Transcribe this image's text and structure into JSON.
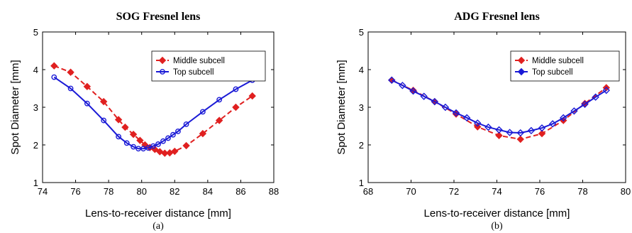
{
  "chart_data": [
    {
      "type": "line",
      "title": "SOG Fresnel lens",
      "xlabel": "Lens-to-receiver distance [mm]",
      "ylabel": "Spot Diameter [mm]",
      "caption": "(a)",
      "xlim": [
        74,
        88
      ],
      "ylim": [
        1,
        5
      ],
      "xticks": [
        74,
        76,
        78,
        80,
        82,
        84,
        86,
        88
      ],
      "yticks": [
        1,
        2,
        3,
        4,
        5
      ],
      "grid": false,
      "legend_position": "upper-right",
      "series": [
        {
          "name": "Middle subcell",
          "color": "#e02020",
          "line_style": "dashed",
          "marker": "diamond",
          "x": [
            74.7,
            75.7,
            76.7,
            77.7,
            78.6,
            79.0,
            79.5,
            79.9,
            80.2,
            80.5,
            80.8,
            81.1,
            81.4,
            81.7,
            82.0,
            82.7,
            83.7,
            84.7,
            85.7,
            86.7
          ],
          "y": [
            4.1,
            3.93,
            3.55,
            3.15,
            2.67,
            2.47,
            2.28,
            2.12,
            2.0,
            1.93,
            1.88,
            1.82,
            1.78,
            1.79,
            1.83,
            1.98,
            2.3,
            2.65,
            3.0,
            3.3
          ]
        },
        {
          "name": "Top subcell",
          "color": "#1a1ad6",
          "line_style": "solid",
          "marker": "circle",
          "x": [
            74.7,
            75.7,
            76.7,
            77.7,
            78.6,
            79.1,
            79.5,
            79.8,
            80.1,
            80.4,
            80.7,
            81.0,
            81.3,
            81.6,
            81.9,
            82.2,
            82.7,
            83.7,
            84.7,
            85.7,
            86.7
          ],
          "y": [
            3.8,
            3.5,
            3.1,
            2.65,
            2.22,
            2.05,
            1.95,
            1.9,
            1.9,
            1.92,
            1.97,
            2.02,
            2.1,
            2.18,
            2.27,
            2.36,
            2.55,
            2.88,
            3.2,
            3.48,
            3.72
          ]
        }
      ]
    },
    {
      "type": "line",
      "title": "ADG Fresnel lens",
      "xlabel": "Lens-to-receiver distance [mm]",
      "ylabel": "Spot Diameter [mm]",
      "caption": "(b)",
      "xlim": [
        68,
        80
      ],
      "ylim": [
        1,
        5
      ],
      "xticks": [
        68,
        70,
        72,
        74,
        76,
        78,
        80
      ],
      "yticks": [
        1,
        2,
        3,
        4,
        5
      ],
      "grid": false,
      "legend_position": "upper-right",
      "series": [
        {
          "name": "Middle subcell",
          "color": "#e02020",
          "line_style": "dashed",
          "marker": "diamond",
          "x": [
            69.1,
            70.1,
            71.1,
            72.1,
            73.1,
            74.1,
            75.1,
            76.1,
            77.1,
            78.1,
            79.1
          ],
          "y": [
            3.72,
            3.45,
            3.15,
            2.82,
            2.48,
            2.25,
            2.15,
            2.3,
            2.65,
            3.1,
            3.52
          ]
        },
        {
          "name": "Top subcell",
          "color": "#1a1ad6",
          "line_style": "solid",
          "marker": "diamond",
          "x": [
            69.1,
            69.6,
            70.1,
            70.6,
            71.1,
            71.6,
            72.1,
            72.6,
            73.1,
            73.6,
            74.1,
            74.6,
            75.1,
            75.6,
            76.1,
            76.6,
            77.1,
            77.6,
            78.1,
            78.6,
            79.1
          ],
          "y": [
            3.72,
            3.58,
            3.43,
            3.29,
            3.15,
            3.0,
            2.85,
            2.72,
            2.58,
            2.47,
            2.4,
            2.33,
            2.32,
            2.38,
            2.45,
            2.56,
            2.72,
            2.9,
            3.08,
            3.27,
            3.45
          ]
        }
      ]
    }
  ]
}
